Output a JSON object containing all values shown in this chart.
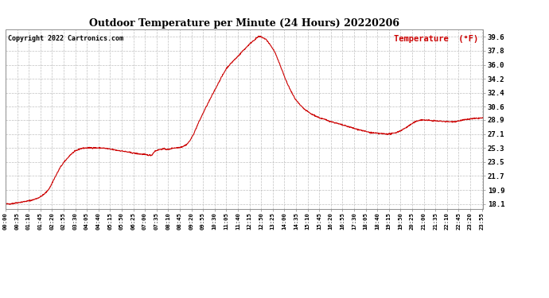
{
  "title": "Outdoor Temperature per Minute (24 Hours) 20220206",
  "copyright_text": "Copyright 2022 Cartronics.com",
  "legend_label": "Temperature  (°F)",
  "background_color": "#ffffff",
  "line_color": "#cc0000",
  "grid_color": "#b0b0b0",
  "title_color": "#000000",
  "copyright_color": "#000000",
  "legend_color": "#cc0000",
  "ytick_values": [
    18.1,
    19.9,
    21.7,
    23.5,
    25.3,
    27.1,
    28.9,
    30.6,
    32.4,
    34.2,
    36.0,
    37.8,
    39.6
  ],
  "ymin": 17.5,
  "ymax": 40.5,
  "total_minutes": 1440,
  "x_tick_interval": 35,
  "control_points": [
    [
      0,
      18.1
    ],
    [
      10,
      18.1
    ],
    [
      20,
      18.15
    ],
    [
      35,
      18.25
    ],
    [
      50,
      18.35
    ],
    [
      70,
      18.5
    ],
    [
      85,
      18.65
    ],
    [
      100,
      18.9
    ],
    [
      115,
      19.3
    ],
    [
      125,
      19.7
    ],
    [
      135,
      20.3
    ],
    [
      145,
      21.2
    ],
    [
      155,
      22.0
    ],
    [
      165,
      22.8
    ],
    [
      175,
      23.4
    ],
    [
      185,
      23.9
    ],
    [
      195,
      24.4
    ],
    [
      205,
      24.75
    ],
    [
      215,
      25.0
    ],
    [
      225,
      25.2
    ],
    [
      235,
      25.28
    ],
    [
      245,
      25.3
    ],
    [
      255,
      25.32
    ],
    [
      265,
      25.32
    ],
    [
      275,
      25.3
    ],
    [
      285,
      25.3
    ],
    [
      295,
      25.28
    ],
    [
      305,
      25.22
    ],
    [
      315,
      25.15
    ],
    [
      325,
      25.08
    ],
    [
      335,
      25.0
    ],
    [
      345,
      24.95
    ],
    [
      355,
      24.88
    ],
    [
      365,
      24.8
    ],
    [
      375,
      24.72
    ],
    [
      385,
      24.65
    ],
    [
      395,
      24.58
    ],
    [
      405,
      24.52
    ],
    [
      415,
      24.48
    ],
    [
      425,
      24.42
    ],
    [
      440,
      24.35
    ],
    [
      450,
      24.9
    ],
    [
      460,
      25.05
    ],
    [
      470,
      25.15
    ],
    [
      480,
      25.18
    ],
    [
      488,
      25.1
    ],
    [
      493,
      25.12
    ],
    [
      498,
      25.2
    ],
    [
      503,
      25.28
    ],
    [
      508,
      25.3
    ],
    [
      513,
      25.32
    ],
    [
      520,
      25.35
    ],
    [
      527,
      25.4
    ],
    [
      533,
      25.48
    ],
    [
      540,
      25.6
    ],
    [
      547,
      25.8
    ],
    [
      555,
      26.2
    ],
    [
      562,
      26.7
    ],
    [
      570,
      27.4
    ],
    [
      580,
      28.4
    ],
    [
      590,
      29.3
    ],
    [
      600,
      30.2
    ],
    [
      612,
      31.2
    ],
    [
      624,
      32.2
    ],
    [
      636,
      33.2
    ],
    [
      648,
      34.2
    ],
    [
      660,
      35.1
    ],
    [
      665,
      35.5
    ],
    [
      670,
      35.75
    ],
    [
      675,
      36.0
    ],
    [
      680,
      36.2
    ],
    [
      685,
      36.45
    ],
    [
      690,
      36.65
    ],
    [
      695,
      36.85
    ],
    [
      700,
      37.1
    ],
    [
      705,
      37.3
    ],
    [
      710,
      37.55
    ],
    [
      715,
      37.8
    ],
    [
      720,
      38.0
    ],
    [
      725,
      38.2
    ],
    [
      730,
      38.45
    ],
    [
      735,
      38.65
    ],
    [
      740,
      38.85
    ],
    [
      745,
      39.05
    ],
    [
      750,
      39.2
    ],
    [
      755,
      39.38
    ],
    [
      758,
      39.5
    ],
    [
      761,
      39.58
    ],
    [
      764,
      39.62
    ],
    [
      767,
      39.62
    ],
    [
      770,
      39.58
    ],
    [
      775,
      39.5
    ],
    [
      780,
      39.38
    ],
    [
      785,
      39.25
    ],
    [
      790,
      39.0
    ],
    [
      795,
      38.72
    ],
    [
      800,
      38.4
    ],
    [
      808,
      37.9
    ],
    [
      815,
      37.3
    ],
    [
      820,
      36.7
    ],
    [
      828,
      35.9
    ],
    [
      835,
      35.1
    ],
    [
      843,
      34.2
    ],
    [
      850,
      33.5
    ],
    [
      858,
      32.8
    ],
    [
      865,
      32.2
    ],
    [
      873,
      31.6
    ],
    [
      880,
      31.2
    ],
    [
      888,
      30.8
    ],
    [
      895,
      30.5
    ],
    [
      903,
      30.2
    ],
    [
      910,
      30.0
    ],
    [
      920,
      29.7
    ],
    [
      930,
      29.5
    ],
    [
      940,
      29.3
    ],
    [
      950,
      29.1
    ],
    [
      960,
      29.0
    ],
    [
      970,
      28.85
    ],
    [
      980,
      28.7
    ],
    [
      990,
      28.58
    ],
    [
      1000,
      28.45
    ],
    [
      1010,
      28.32
    ],
    [
      1020,
      28.2
    ],
    [
      1030,
      28.08
    ],
    [
      1040,
      27.95
    ],
    [
      1050,
      27.82
    ],
    [
      1060,
      27.7
    ],
    [
      1070,
      27.6
    ],
    [
      1080,
      27.48
    ],
    [
      1090,
      27.38
    ],
    [
      1100,
      27.28
    ],
    [
      1110,
      27.22
    ],
    [
      1120,
      27.18
    ],
    [
      1130,
      27.15
    ],
    [
      1140,
      27.12
    ],
    [
      1148,
      27.1
    ],
    [
      1155,
      27.1
    ],
    [
      1162,
      27.12
    ],
    [
      1170,
      27.2
    ],
    [
      1178,
      27.3
    ],
    [
      1185,
      27.42
    ],
    [
      1193,
      27.58
    ],
    [
      1200,
      27.75
    ],
    [
      1208,
      27.95
    ],
    [
      1215,
      28.15
    ],
    [
      1222,
      28.35
    ],
    [
      1230,
      28.55
    ],
    [
      1238,
      28.72
    ],
    [
      1245,
      28.85
    ],
    [
      1252,
      28.9
    ],
    [
      1260,
      28.9
    ],
    [
      1268,
      28.88
    ],
    [
      1275,
      28.85
    ],
    [
      1283,
      28.82
    ],
    [
      1290,
      28.8
    ],
    [
      1297,
      28.78
    ],
    [
      1305,
      28.75
    ],
    [
      1312,
      28.75
    ],
    [
      1320,
      28.72
    ],
    [
      1328,
      28.7
    ],
    [
      1335,
      28.68
    ],
    [
      1343,
      28.68
    ],
    [
      1350,
      28.7
    ],
    [
      1358,
      28.72
    ],
    [
      1365,
      28.78
    ],
    [
      1373,
      28.85
    ],
    [
      1380,
      28.9
    ],
    [
      1388,
      28.95
    ],
    [
      1395,
      29.0
    ],
    [
      1403,
      29.05
    ],
    [
      1410,
      29.08
    ],
    [
      1418,
      29.1
    ],
    [
      1425,
      29.12
    ],
    [
      1432,
      29.15
    ],
    [
      1439,
      29.15
    ]
  ]
}
